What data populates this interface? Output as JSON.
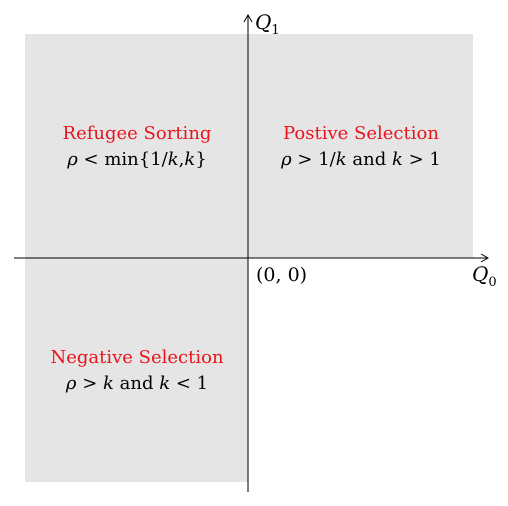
{
  "axes": {
    "x_label": "Q",
    "x_subscript": "0",
    "y_label": "Q",
    "y_subscript": "1",
    "origin_label": "(0, 0)"
  },
  "regions": [
    {
      "id": "refugee",
      "title": "Refugee Sorting",
      "condition_parts": [
        "ρ",
        " < min{1/",
        "k",
        ",",
        "k",
        "}"
      ]
    },
    {
      "id": "positive",
      "title": "Postive Selection",
      "condition_parts": [
        "ρ",
        " > 1/",
        "k",
        " and ",
        "k",
        " > 1"
      ]
    },
    {
      "id": "negative",
      "title": "Negative Selection",
      "condition_parts": [
        "ρ",
        " > ",
        "k",
        " and ",
        "k",
        " < 1"
      ]
    }
  ],
  "colors": {
    "region_fill": "#e5e5e5",
    "title_text": "#e8141c",
    "axis": "#000000"
  }
}
